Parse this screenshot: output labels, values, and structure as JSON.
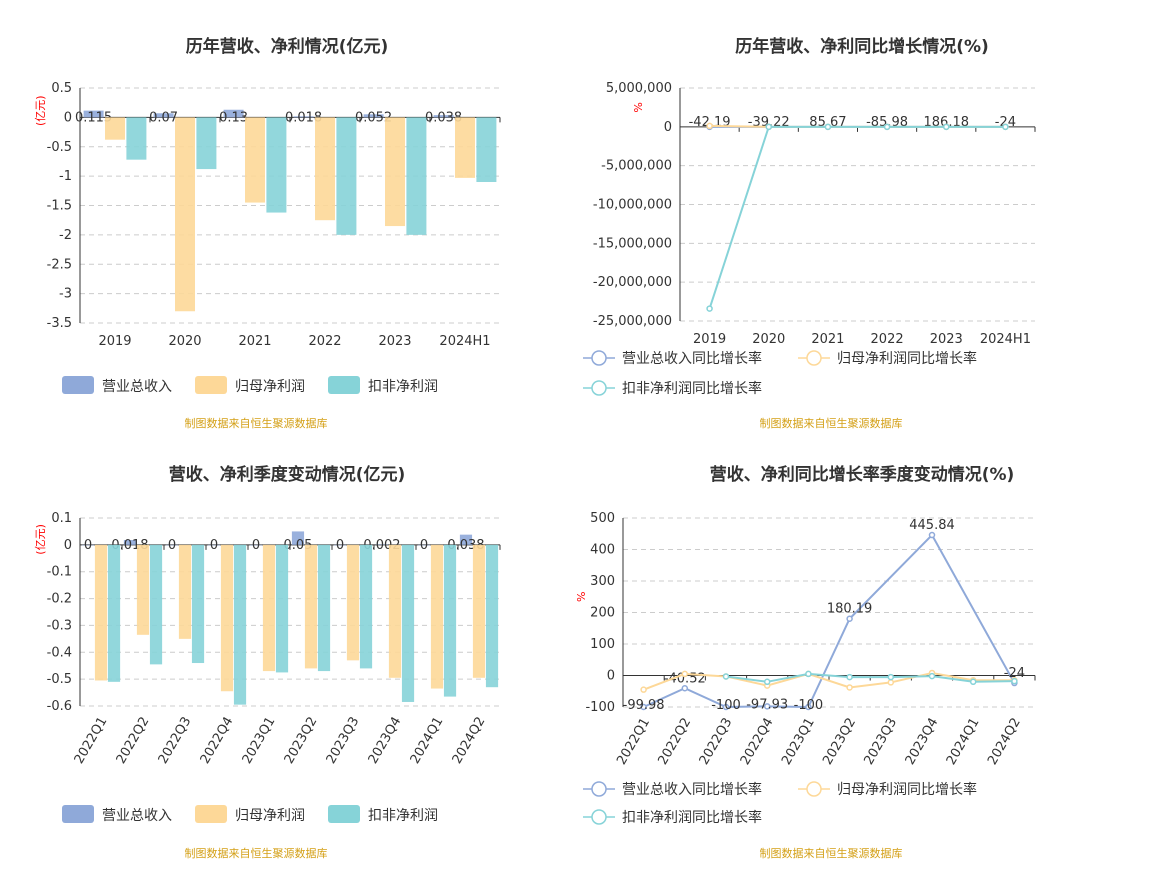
{
  "source_note": "制图数据来自恒生聚源数据库",
  "colors": {
    "revenue": "#8fa9d9",
    "net_profit": "#fdd898",
    "deducted": "#86d3d8"
  },
  "chart_data": [
    {
      "type": "bar",
      "title": "历年营收、净利情况(亿元)",
      "unit_label": "(亿元)",
      "categories": [
        "2019",
        "2020",
        "2021",
        "2022",
        "2023",
        "2024H1"
      ],
      "ylim": [
        -3.5,
        0.5
      ],
      "yticks": [
        0.5,
        0,
        -0.5,
        -1,
        -1.5,
        -2,
        -2.5,
        -3,
        -3.5
      ],
      "ytick_labels": [
        "0.5",
        "0",
        "-0.5",
        "-1",
        "-1.5",
        "-2",
        "-2.5",
        "-3",
        "-3.5"
      ],
      "grid": true,
      "legend_position": "bottom",
      "series": [
        {
          "name": "营业总收入",
          "values": [
            0.115,
            0.07,
            0.13,
            0.018,
            0.052,
            0.038
          ],
          "labels": [
            "0.115",
            "0.07",
            "0.13",
            "0.018",
            "0.052",
            "0.038"
          ]
        },
        {
          "name": "归母净利润",
          "values": [
            -0.38,
            -3.3,
            -1.45,
            -1.75,
            -1.85,
            -1.03
          ]
        },
        {
          "name": "扣非净利润",
          "values": [
            -0.72,
            -0.88,
            -1.62,
            -2.0,
            -2.0,
            -1.1
          ]
        }
      ]
    },
    {
      "type": "line",
      "title": "历年营收、净利同比增长情况(%)",
      "unit_label": "%",
      "categories": [
        "2019",
        "2020",
        "2021",
        "2022",
        "2023",
        "2024H1"
      ],
      "ylim": [
        -25000000,
        5000000
      ],
      "yticks": [
        5000000,
        0,
        -5000000,
        -10000000,
        -15000000,
        -20000000,
        -25000000
      ],
      "ytick_labels": [
        "5,000,000",
        "0",
        "-5,000,000",
        "-10,000,000",
        "-15,000,000",
        "-20,000,000",
        "-25,000,000"
      ],
      "grid": true,
      "legend_position": "bottom",
      "series": [
        {
          "name": "营业总收入同比增长率",
          "values": [
            -42.19,
            -39.22,
            85.67,
            -85.98,
            186.18,
            -24
          ],
          "labels": [
            "-42.19",
            "-39.22",
            "85.67",
            "-85.98",
            "186.18",
            "-24"
          ]
        },
        {
          "name": "归母净利润同比增长率",
          "values": [
            120000,
            -800,
            55,
            -20,
            -5,
            44
          ]
        },
        {
          "name": "扣非净利润同比增长率",
          "values": [
            -23400000,
            -20,
            -85,
            -23,
            0,
            45
          ]
        }
      ]
    },
    {
      "type": "bar",
      "title": "营收、净利季度变动情况(亿元)",
      "unit_label": "(亿元)",
      "categories": [
        "2022Q1",
        "2022Q2",
        "2022Q3",
        "2022Q4",
        "2023Q1",
        "2023Q2",
        "2023Q3",
        "2023Q4",
        "2024Q1",
        "2024Q2"
      ],
      "ylim": [
        -0.6,
        0.1
      ],
      "yticks": [
        0.1,
        0,
        -0.1,
        -0.2,
        -0.3,
        -0.4,
        -0.5,
        -0.6
      ],
      "ytick_labels": [
        "0.1",
        "0",
        "-0.1",
        "-0.2",
        "-0.3",
        "-0.4",
        "-0.5",
        "-0.6"
      ],
      "grid": true,
      "legend_position": "bottom",
      "series": [
        {
          "name": "营业总收入",
          "values": [
            0,
            0.018,
            0,
            0,
            0,
            0.05,
            0,
            0.002,
            0,
            0.038
          ],
          "labels": [
            "0",
            "0.018",
            "0",
            "0",
            "0",
            "0.05",
            "0",
            "0.002",
            "0",
            "0.038"
          ]
        },
        {
          "name": "归母净利润",
          "values": [
            -0.505,
            -0.335,
            -0.35,
            -0.545,
            -0.47,
            -0.46,
            -0.43,
            -0.495,
            -0.535,
            -0.495
          ]
        },
        {
          "name": "扣非净利润",
          "values": [
            -0.51,
            -0.445,
            -0.44,
            -0.595,
            -0.475,
            -0.47,
            -0.46,
            -0.585,
            -0.565,
            -0.53
          ]
        }
      ]
    },
    {
      "type": "line",
      "title": "营收、净利同比增长率季度变动情况(%)",
      "unit_label": "%",
      "categories": [
        "2022Q1",
        "2022Q2",
        "2022Q3",
        "2022Q4",
        "2023Q1",
        "2023Q2",
        "2023Q3",
        "2023Q4",
        "2024Q1",
        "2024Q2"
      ],
      "ylim": [
        -100,
        500
      ],
      "yticks": [
        500,
        400,
        300,
        200,
        100,
        0,
        -100
      ],
      "ytick_labels": [
        "500",
        "400",
        "300",
        "200",
        "100",
        "0",
        "-100"
      ],
      "grid": true,
      "legend_position": "bottom",
      "series": [
        {
          "name": "营业总收入同比增长率",
          "values": [
            -99.98,
            -40.52,
            -100,
            -97.93,
            -100,
            180.19,
            null,
            445.84,
            null,
            -24
          ],
          "labels": [
            "-99.98",
            "-40.52",
            "-100",
            "-97.93",
            "-100",
            "180.19",
            "",
            "445.84",
            "",
            "-24"
          ]
        },
        {
          "name": "归母净利润同比增长率",
          "values": [
            -45,
            5,
            -3,
            -32,
            5,
            -38,
            -22,
            8,
            -15,
            -15
          ]
        },
        {
          "name": "扣非净利润同比增长率",
          "values": [
            null,
            null,
            -3,
            -20,
            5,
            -5,
            -5,
            -2,
            -20,
            -18
          ]
        }
      ]
    }
  ]
}
